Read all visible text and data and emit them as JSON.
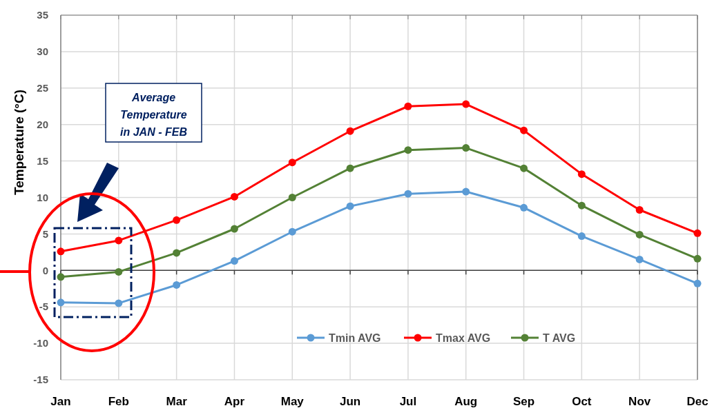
{
  "chart_data": {
    "type": "line",
    "ylabel": "Temperature (°C)",
    "categories": [
      "Jan",
      "Feb",
      "Mar",
      "Apr",
      "May",
      "Jun",
      "Jul",
      "Aug",
      "Sep",
      "Oct",
      "Nov",
      "Dec"
    ],
    "series": [
      {
        "name": "Tmin AVG",
        "color": "#5b9bd5",
        "values": [
          -4.4,
          -4.5,
          -2.0,
          1.3,
          5.3,
          8.8,
          10.5,
          10.8,
          8.6,
          4.7,
          1.5,
          -1.8
        ]
      },
      {
        "name": "Tmax AVG",
        "color": "#ff0000",
        "values": [
          2.6,
          4.1,
          6.9,
          10.1,
          14.8,
          19.1,
          22.5,
          22.8,
          19.2,
          13.2,
          8.3,
          5.1
        ]
      },
      {
        "name": "T AVG",
        "color": "#538135",
        "values": [
          -0.9,
          -0.2,
          2.4,
          5.7,
          10.0,
          14.0,
          16.5,
          16.8,
          14.0,
          8.9,
          4.9,
          1.6
        ]
      }
    ],
    "ylim": [
      -15,
      35
    ],
    "yticks": [
      -15,
      -10,
      -5,
      0,
      5,
      10,
      15,
      20,
      25,
      30,
      35
    ],
    "grid": true,
    "legend": "bottom",
    "marker": "circle",
    "line_style": "solid",
    "annotations": [
      "Average Temperature in JAN - FEB"
    ]
  }
}
